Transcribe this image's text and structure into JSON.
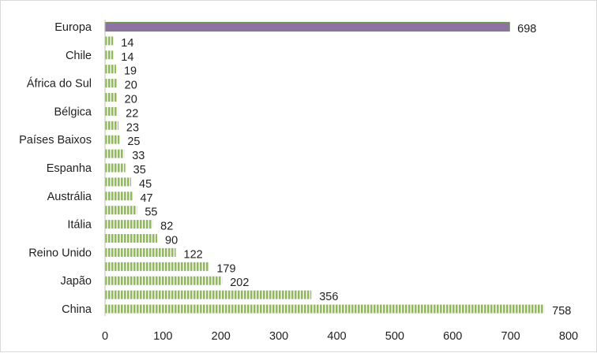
{
  "chart_data": {
    "type": "bar",
    "orientation": "horizontal",
    "title": "",
    "xlabel": "",
    "ylabel": "",
    "xlim": [
      0,
      800
    ],
    "x_ticks": [
      0,
      100,
      200,
      300,
      400,
      500,
      600,
      700,
      800
    ],
    "grid": false,
    "legend": "none",
    "bars": [
      {
        "category": "Europa",
        "value": 698,
        "highlight": true
      },
      {
        "category": "",
        "value": 14,
        "highlight": false
      },
      {
        "category": "Chile",
        "value": 14,
        "highlight": false
      },
      {
        "category": "",
        "value": 19,
        "highlight": false
      },
      {
        "category": "África do Sul",
        "value": 20,
        "highlight": false
      },
      {
        "category": "",
        "value": 20,
        "highlight": false
      },
      {
        "category": "Bélgica",
        "value": 22,
        "highlight": false
      },
      {
        "category": "",
        "value": 23,
        "highlight": false
      },
      {
        "category": "Países Baixos",
        "value": 25,
        "highlight": false
      },
      {
        "category": "",
        "value": 33,
        "highlight": false
      },
      {
        "category": "Espanha",
        "value": 35,
        "highlight": false
      },
      {
        "category": "",
        "value": 45,
        "highlight": false
      },
      {
        "category": "Austrália",
        "value": 47,
        "highlight": false
      },
      {
        "category": "",
        "value": 55,
        "highlight": false
      },
      {
        "category": "Itália",
        "value": 82,
        "highlight": false
      },
      {
        "category": "",
        "value": 90,
        "highlight": false
      },
      {
        "category": "Reino Unido",
        "value": 122,
        "highlight": false
      },
      {
        "category": "",
        "value": 179,
        "highlight": false
      },
      {
        "category": "Japão",
        "value": 202,
        "highlight": false
      },
      {
        "category": "",
        "value": 356,
        "highlight": false
      },
      {
        "category": "China",
        "value": 758,
        "highlight": false
      }
    ],
    "colors": {
      "highlight_fill": "#8e72a4",
      "highlight_edge": "#6f8f4e",
      "bar_fill": "#8cc04a",
      "bar_stripe": "#ffffff",
      "axis": "#bfbfbf",
      "text": "#1f1f1f"
    }
  }
}
